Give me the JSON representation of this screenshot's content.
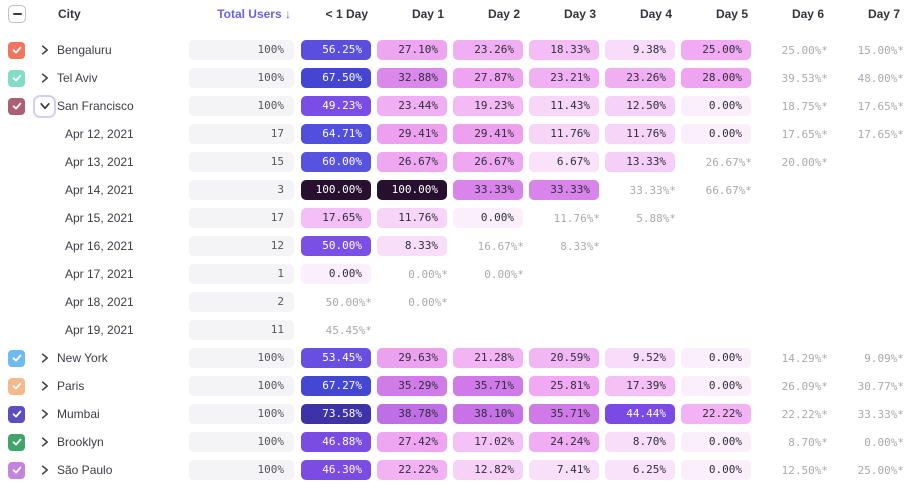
{
  "header": {
    "columns": [
      "City",
      "Total Users ↓",
      "< 1 Day",
      "Day 1",
      "Day 2",
      "Day 3",
      "Day 4",
      "Day 5",
      "Day 6",
      "Day 7"
    ],
    "select_all_state": "indeterminate",
    "sort": {
      "column": "Total Users",
      "direction": "desc"
    }
  },
  "colors": {
    "sort_accent": "#6663E2",
    "header_text": "#34343E",
    "estimate_text": "#A9A9B2",
    "total_pill_bg": "#F4F4F6",
    "pill_text_dark": "#2F2F3B",
    "pill_text_light": "#FFFFFF",
    "expand_ring": "#D3CDF9"
  },
  "heat_scale": [
    [
      0,
      "#FBEFFB"
    ],
    [
      10,
      "#F8DBF9"
    ],
    [
      20,
      "#F3B7F5"
    ],
    [
      26,
      "#F0A9F2"
    ],
    [
      30,
      "#EC9FF0"
    ],
    [
      34,
      "#D47FE9"
    ],
    [
      38,
      "#C973E7"
    ],
    [
      44,
      "#7B49E3"
    ],
    [
      50,
      "#7A4FE6"
    ],
    [
      57,
      "#564EDD"
    ],
    [
      63,
      "#5A55E2"
    ],
    [
      67,
      "#4448D6"
    ],
    [
      74,
      "#3E31A6"
    ],
    [
      100,
      "#27102F"
    ]
  ],
  "rows": [
    {
      "kind": "city",
      "label": "Bengaluru",
      "checkbox_color": "#F2765D",
      "checked": true,
      "expanded": false,
      "total": "100%",
      "cells": [
        {
          "text": "56.25%",
          "value": 56.25
        },
        {
          "text": "27.10%",
          "value": 27.1
        },
        {
          "text": "23.26%",
          "value": 23.26
        },
        {
          "text": "18.33%",
          "value": 18.33
        },
        {
          "text": "9.38%",
          "value": 9.38
        },
        {
          "text": "25.00%",
          "value": 25.0
        },
        {
          "text": "25.00%*",
          "value": 25.0,
          "estimate": true
        },
        {
          "text": "15.00%*",
          "value": 15.0,
          "estimate": true
        }
      ]
    },
    {
      "kind": "city",
      "label": "Tel Aviv",
      "checkbox_color": "#83DCC7",
      "checked": true,
      "expanded": false,
      "total": "100%",
      "cells": [
        {
          "text": "67.50%",
          "value": 67.5
        },
        {
          "text": "32.88%",
          "value": 32.88
        },
        {
          "text": "27.87%",
          "value": 27.87
        },
        {
          "text": "23.21%",
          "value": 23.21
        },
        {
          "text": "23.26%",
          "value": 23.26
        },
        {
          "text": "28.00%",
          "value": 28.0
        },
        {
          "text": "39.53%*",
          "value": 39.53,
          "estimate": true
        },
        {
          "text": "48.00%*",
          "value": 48.0,
          "estimate": true
        }
      ]
    },
    {
      "kind": "city",
      "label": "San Francisco",
      "checkbox_color": "#AD5F74",
      "checked": true,
      "expanded": true,
      "total": "100%",
      "cells": [
        {
          "text": "49.23%",
          "value": 49.23
        },
        {
          "text": "23.44%",
          "value": 23.44
        },
        {
          "text": "19.23%",
          "value": 19.23
        },
        {
          "text": "11.43%",
          "value": 11.43
        },
        {
          "text": "12.50%",
          "value": 12.5
        },
        {
          "text": "0.00%",
          "value": 0.0
        },
        {
          "text": "18.75%*",
          "value": 18.75,
          "estimate": true
        },
        {
          "text": "17.65%*",
          "value": 17.65,
          "estimate": true
        }
      ]
    },
    {
      "kind": "date",
      "label": "Apr 12, 2021",
      "total": "17",
      "cells": [
        {
          "text": "64.71%",
          "value": 64.71
        },
        {
          "text": "29.41%",
          "value": 29.41
        },
        {
          "text": "29.41%",
          "value": 29.41
        },
        {
          "text": "11.76%",
          "value": 11.76
        },
        {
          "text": "11.76%",
          "value": 11.76
        },
        {
          "text": "0.00%",
          "value": 0.0
        },
        {
          "text": "17.65%*",
          "value": 17.65,
          "estimate": true
        },
        {
          "text": "17.65%*",
          "value": 17.65,
          "estimate": true
        }
      ]
    },
    {
      "kind": "date",
      "label": "Apr 13, 2021",
      "total": "15",
      "cells": [
        {
          "text": "60.00%",
          "value": 60.0
        },
        {
          "text": "26.67%",
          "value": 26.67
        },
        {
          "text": "26.67%",
          "value": 26.67
        },
        {
          "text": "6.67%",
          "value": 6.67
        },
        {
          "text": "13.33%",
          "value": 13.33
        },
        {
          "text": "26.67%*",
          "value": 26.67,
          "estimate": true
        },
        {
          "text": "20.00%*",
          "value": 20.0,
          "estimate": true
        },
        null
      ]
    },
    {
      "kind": "date",
      "label": "Apr 14, 2021",
      "total": "3",
      "cells": [
        {
          "text": "100.00%",
          "value": 100.0
        },
        {
          "text": "100.00%",
          "value": 100.0
        },
        {
          "text": "33.33%",
          "value": 33.33
        },
        {
          "text": "33.33%",
          "value": 33.33
        },
        {
          "text": "33.33%*",
          "value": 33.33,
          "estimate": true
        },
        {
          "text": "66.67%*",
          "value": 66.67,
          "estimate": true
        },
        null,
        null
      ]
    },
    {
      "kind": "date",
      "label": "Apr 15, 2021",
      "total": "17",
      "cells": [
        {
          "text": "17.65%",
          "value": 17.65
        },
        {
          "text": "11.76%",
          "value": 11.76
        },
        {
          "text": "0.00%",
          "value": 0.0
        },
        {
          "text": "11.76%*",
          "value": 11.76,
          "estimate": true
        },
        {
          "text": "5.88%*",
          "value": 5.88,
          "estimate": true
        },
        null,
        null,
        null
      ]
    },
    {
      "kind": "date",
      "label": "Apr 16, 2021",
      "total": "12",
      "cells": [
        {
          "text": "50.00%",
          "value": 50.0
        },
        {
          "text": "8.33%",
          "value": 8.33
        },
        {
          "text": "16.67%*",
          "value": 16.67,
          "estimate": true
        },
        {
          "text": "8.33%*",
          "value": 8.33,
          "estimate": true
        },
        null,
        null,
        null,
        null
      ]
    },
    {
      "kind": "date",
      "label": "Apr 17, 2021",
      "total": "1",
      "cells": [
        {
          "text": "0.00%",
          "value": 0.0
        },
        {
          "text": "0.00%*",
          "value": 0.0,
          "estimate": true
        },
        {
          "text": "0.00%*",
          "value": 0.0,
          "estimate": true
        },
        null,
        null,
        null,
        null,
        null
      ]
    },
    {
      "kind": "date",
      "label": "Apr 18, 2021",
      "total": "2",
      "cells": [
        {
          "text": "50.00%*",
          "value": 50.0,
          "estimate": true
        },
        {
          "text": "0.00%*",
          "value": 0.0,
          "estimate": true
        },
        null,
        null,
        null,
        null,
        null,
        null
      ]
    },
    {
      "kind": "date",
      "label": "Apr 19, 2021",
      "total": "11",
      "cells": [
        {
          "text": "45.45%*",
          "value": 45.45,
          "estimate": true
        },
        null,
        null,
        null,
        null,
        null,
        null,
        null
      ]
    },
    {
      "kind": "city",
      "label": "New York",
      "checkbox_color": "#6FBBF0",
      "checked": true,
      "expanded": false,
      "total": "100%",
      "cells": [
        {
          "text": "53.45%",
          "value": 53.45
        },
        {
          "text": "29.63%",
          "value": 29.63
        },
        {
          "text": "21.28%",
          "value": 21.28
        },
        {
          "text": "20.59%",
          "value": 20.59
        },
        {
          "text": "9.52%",
          "value": 9.52
        },
        {
          "text": "0.00%",
          "value": 0.0
        },
        {
          "text": "14.29%*",
          "value": 14.29,
          "estimate": true
        },
        {
          "text": "9.09%*",
          "value": 9.09,
          "estimate": true
        }
      ]
    },
    {
      "kind": "city",
      "label": "Paris",
      "checkbox_color": "#F8B98A",
      "checked": true,
      "expanded": false,
      "total": "100%",
      "cells": [
        {
          "text": "67.27%",
          "value": 67.27
        },
        {
          "text": "35.29%",
          "value": 35.29
        },
        {
          "text": "35.71%",
          "value": 35.71
        },
        {
          "text": "25.81%",
          "value": 25.81
        },
        {
          "text": "17.39%",
          "value": 17.39
        },
        {
          "text": "0.00%",
          "value": 0.0
        },
        {
          "text": "26.09%*",
          "value": 26.09,
          "estimate": true
        },
        {
          "text": "30.77%*",
          "value": 30.77,
          "estimate": true
        }
      ]
    },
    {
      "kind": "city",
      "label": "Mumbai",
      "checkbox_color": "#5B50BE",
      "checked": true,
      "expanded": false,
      "total": "100%",
      "cells": [
        {
          "text": "73.58%",
          "value": 73.58
        },
        {
          "text": "38.78%",
          "value": 38.78
        },
        {
          "text": "38.10%",
          "value": 38.1
        },
        {
          "text": "35.71%",
          "value": 35.71
        },
        {
          "text": "44.44%",
          "value": 44.44
        },
        {
          "text": "22.22%",
          "value": 22.22
        },
        {
          "text": "22.22%*",
          "value": 22.22,
          "estimate": true
        },
        {
          "text": "33.33%*",
          "value": 33.33,
          "estimate": true
        }
      ]
    },
    {
      "kind": "city",
      "label": "Brooklyn",
      "checkbox_color": "#3FA568",
      "checked": true,
      "expanded": false,
      "total": "100%",
      "cells": [
        {
          "text": "46.88%",
          "value": 46.88
        },
        {
          "text": "27.42%",
          "value": 27.42
        },
        {
          "text": "17.02%",
          "value": 17.02
        },
        {
          "text": "24.24%",
          "value": 24.24
        },
        {
          "text": "8.70%",
          "value": 8.7
        },
        {
          "text": "0.00%",
          "value": 0.0
        },
        {
          "text": "8.70%*",
          "value": 8.7,
          "estimate": true
        },
        {
          "text": "0.00%*",
          "value": 0.0,
          "estimate": true
        }
      ]
    },
    {
      "kind": "city",
      "label": "São Paulo",
      "checkbox_color": "#C583E0",
      "checked": true,
      "expanded": false,
      "total": "100%",
      "cells": [
        {
          "text": "46.30%",
          "value": 46.3
        },
        {
          "text": "22.22%",
          "value": 22.22
        },
        {
          "text": "12.82%",
          "value": 12.82
        },
        {
          "text": "7.41%",
          "value": 7.41
        },
        {
          "text": "6.25%",
          "value": 6.25
        },
        {
          "text": "0.00%",
          "value": 0.0
        },
        {
          "text": "12.50%*",
          "value": 12.5,
          "estimate": true
        },
        {
          "text": "25.00%*",
          "value": 25.0,
          "estimate": true
        }
      ]
    }
  ]
}
